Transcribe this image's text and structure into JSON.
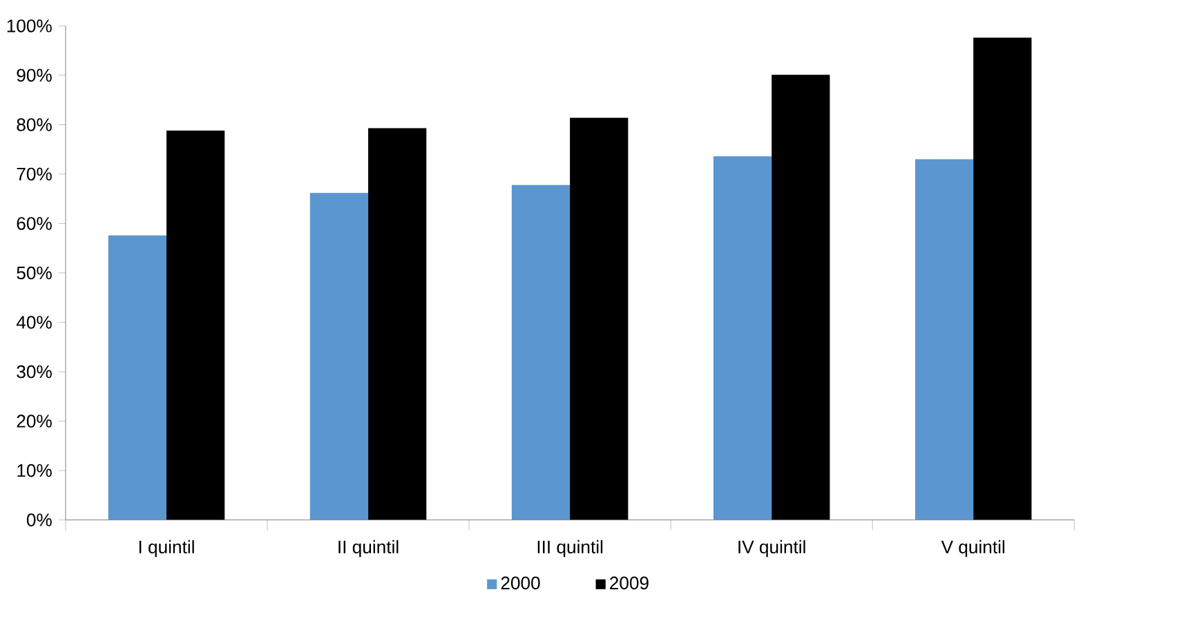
{
  "chart_data": {
    "type": "bar",
    "categories": [
      "I quintil",
      "II quintil",
      "III quintil",
      "IV quintil",
      "V quintil"
    ],
    "series": [
      {
        "name": "2000",
        "color": "#5b96d0",
        "values": [
          57.6,
          66.2,
          67.8,
          73.6,
          73.0
        ]
      },
      {
        "name": "2009",
        "color": "#000000",
        "values": [
          78.8,
          79.3,
          81.4,
          90.1,
          97.6
        ]
      }
    ],
    "ylim": [
      0,
      100
    ],
    "yticks": [
      {
        "value": 0,
        "label": "0%"
      },
      {
        "value": 10,
        "label": "10%"
      },
      {
        "value": 20,
        "label": "20%"
      },
      {
        "value": 30,
        "label": "30%"
      },
      {
        "value": 40,
        "label": "40%"
      },
      {
        "value": 50,
        "label": "50%"
      },
      {
        "value": 60,
        "label": "60%"
      },
      {
        "value": 70,
        "label": "70%"
      },
      {
        "value": 80,
        "label": "80%"
      },
      {
        "value": 90,
        "label": "90%"
      },
      {
        "value": 100,
        "label": "100%"
      }
    ],
    "legend": "bottom"
  }
}
